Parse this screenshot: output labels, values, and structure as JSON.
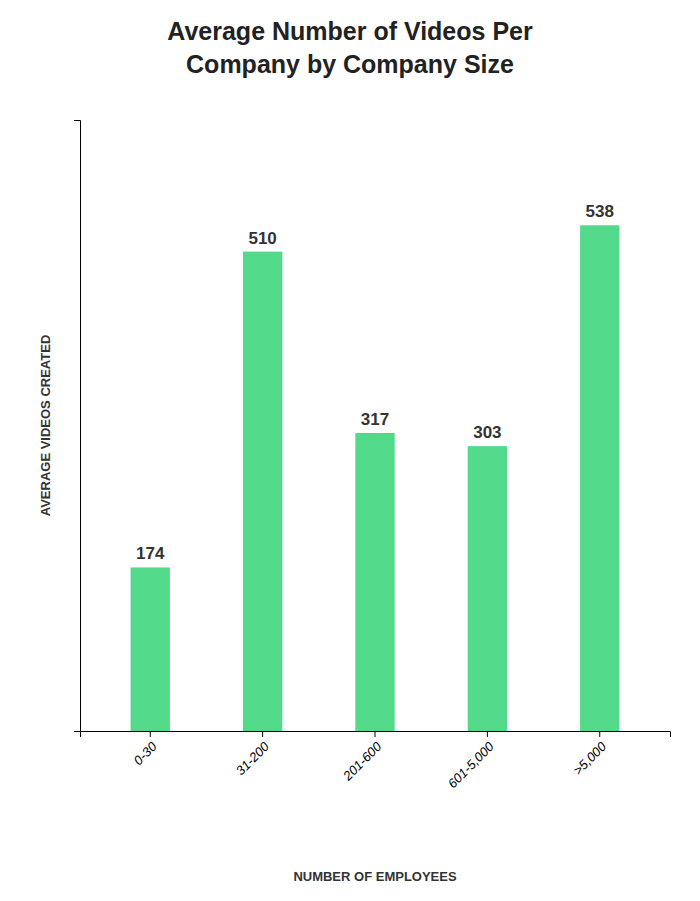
{
  "chart_data": {
    "type": "bar",
    "title": "Average Number of Videos Per\nCompany by Company Size",
    "categories": [
      "0-30",
      "31-200",
      "201-600",
      "601-5,000",
      ">5,000"
    ],
    "values": [
      174,
      510,
      317,
      303,
      538
    ],
    "color": "#52d98a",
    "xlabel": "NUMBER OF EMPLOYEES",
    "ylabel": "AVERAGE VIDEOS CREATED",
    "ylim": [
      0,
      650
    ],
    "tick_labels": "x",
    "data_labels": true,
    "grid": false
  }
}
